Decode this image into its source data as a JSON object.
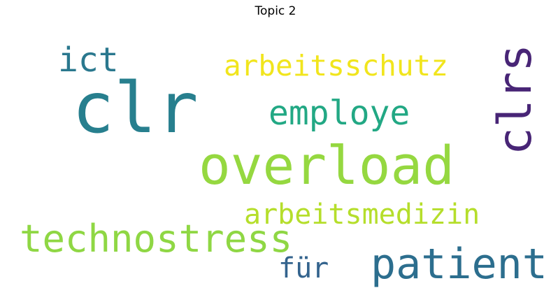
{
  "title": "Topic 2",
  "words": [
    {
      "id": "clr",
      "text": "clr",
      "color": "#277f8e"
    },
    {
      "id": "overload",
      "text": "overload",
      "color": "#95d840"
    },
    {
      "id": "clrs",
      "text": "clrs",
      "color": "#482576"
    },
    {
      "id": "technostress",
      "text": "technostress",
      "color": "#8fd744"
    },
    {
      "id": "patient",
      "text": "patient",
      "color": "#2c6e8e"
    },
    {
      "id": "employe",
      "text": "employe",
      "color": "#22a884"
    },
    {
      "id": "ict",
      "text": "ict",
      "color": "#2a788e"
    },
    {
      "id": "arbeitsschutz",
      "text": "arbeitsschutz",
      "color": "#f1e51d"
    },
    {
      "id": "arbeitsmedizin",
      "text": "arbeitsmedizin",
      "color": "#b5de2b"
    },
    {
      "id": "fuer",
      "text": "für",
      "color": "#33638d"
    }
  ]
}
